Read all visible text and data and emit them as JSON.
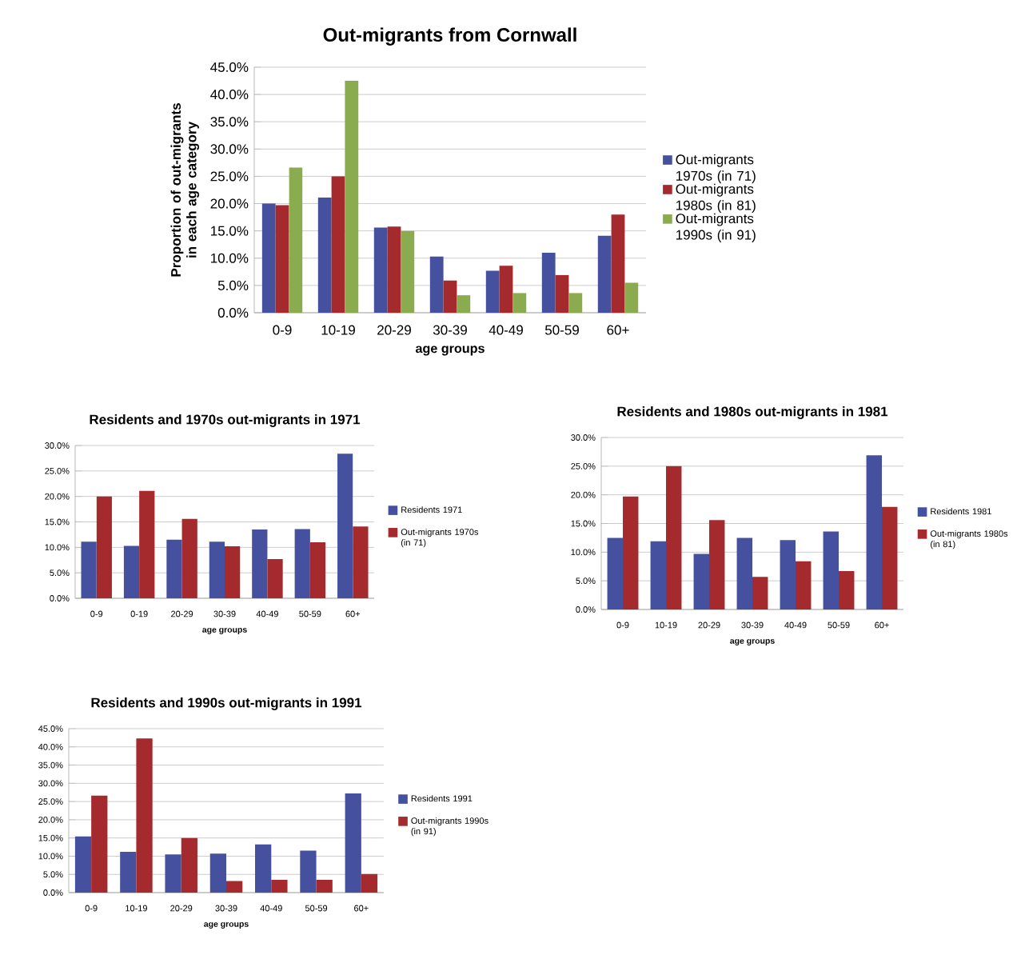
{
  "chart_data": [
    {
      "type": "bar",
      "title": "Out-migrants from Cornwall",
      "xlabel": "age groups",
      "ylabel": "Proportion of out-migrants in each age category",
      "categories": [
        "0-9",
        "10-19",
        "20-29",
        "30-39",
        "40-49",
        "50-59",
        "60+"
      ],
      "series": [
        {
          "name": "Out-migrants 1970s (in 71)",
          "color": "#45509e",
          "values": [
            20.0,
            21.1,
            15.6,
            10.3,
            7.7,
            11.0,
            14.1
          ]
        },
        {
          "name": "Out-migrants 1980s (in 81)",
          "color": "#a52a2e",
          "values": [
            19.7,
            25.0,
            15.8,
            5.9,
            8.6,
            6.9,
            18.0
          ]
        },
        {
          "name": "Out-migrants 1990s (in 91)",
          "color": "#8aac4f",
          "values": [
            26.6,
            42.5,
            15.0,
            3.2,
            3.6,
            3.6,
            5.5
          ]
        }
      ],
      "ylim": [
        0,
        45
      ],
      "yticks": [
        {
          "value": 0,
          "label": "0.0%"
        },
        {
          "value": 5,
          "label": "5.0%"
        },
        {
          "value": 10,
          "label": "10.0%"
        },
        {
          "value": 15,
          "label": "15.0%"
        },
        {
          "value": 20,
          "label": "20.0%"
        },
        {
          "value": 25,
          "label": "25.0%"
        },
        {
          "value": 30,
          "label": "30.0%"
        },
        {
          "value": 35,
          "label": "35.0%"
        },
        {
          "value": 40,
          "label": "40.0%"
        },
        {
          "value": 45,
          "label": "45.0%"
        }
      ],
      "grid": "y",
      "legend": "right"
    },
    {
      "type": "bar",
      "title": "Residents and 1970s out-migrants in 1971",
      "xlabel": "age groups",
      "categories": [
        "0-9",
        "0-19",
        "20-29",
        "30-39",
        "40-49",
        "50-59",
        "60+"
      ],
      "series": [
        {
          "name": "Residents 1971",
          "color": "#45509e",
          "values": [
            11.1,
            10.3,
            11.5,
            11.1,
            13.5,
            13.6,
            28.4
          ]
        },
        {
          "name": "Out-migrants 1970s (in 71)",
          "color": "#a52a2e",
          "values": [
            20.0,
            21.1,
            15.6,
            10.2,
            7.7,
            11.0,
            14.1
          ]
        }
      ],
      "ylim": [
        0,
        30
      ],
      "yticks": [
        {
          "value": 0,
          "label": "0.0%"
        },
        {
          "value": 5,
          "label": "5.0%"
        },
        {
          "value": 10,
          "label": "10.0%"
        },
        {
          "value": 15,
          "label": "15.0%"
        },
        {
          "value": 20,
          "label": "20.0%"
        },
        {
          "value": 25,
          "label": "25.0%"
        },
        {
          "value": 30,
          "label": "30.0%"
        }
      ],
      "grid": "y",
      "legend": "right"
    },
    {
      "type": "bar",
      "title": "Residents and 1980s out-migrants in 1981",
      "xlabel": "age groups",
      "categories": [
        "0-9",
        "10-19",
        "20-29",
        "30-39",
        "40-49",
        "50-59",
        "60+"
      ],
      "series": [
        {
          "name": "Residents 1981",
          "color": "#45509e",
          "values": [
            12.5,
            11.9,
            9.7,
            12.5,
            12.1,
            13.6,
            26.9
          ]
        },
        {
          "name": "Out-migrants 1980s (in 81)",
          "color": "#a52a2e",
          "values": [
            19.7,
            25.0,
            15.6,
            5.7,
            8.4,
            6.7,
            17.9
          ]
        }
      ],
      "ylim": [
        0,
        30
      ],
      "yticks": [
        {
          "value": 0,
          "label": "0.0%"
        },
        {
          "value": 5,
          "label": "5.0%"
        },
        {
          "value": 10,
          "label": "10.0%"
        },
        {
          "value": 15,
          "label": "15.0%"
        },
        {
          "value": 20,
          "label": "20.0%"
        },
        {
          "value": 25,
          "label": "25.0%"
        },
        {
          "value": 30,
          "label": "30.0%"
        }
      ],
      "grid": "y",
      "legend": "right"
    },
    {
      "type": "bar",
      "title": "Residents and 1990s out-migrants in 1991",
      "xlabel": "age groups",
      "categories": [
        "0-9",
        "10-19",
        "20-29",
        "30-39",
        "40-49",
        "50-59",
        "60+"
      ],
      "series": [
        {
          "name": "Residents 1991",
          "color": "#45509e",
          "values": [
            15.4,
            11.2,
            10.5,
            10.7,
            13.2,
            11.5,
            27.2
          ]
        },
        {
          "name": "Out-migrants 1990s (in 91)",
          "color": "#a52a2e",
          "values": [
            26.6,
            42.3,
            15.0,
            3.2,
            3.5,
            3.5,
            5.1
          ]
        }
      ],
      "ylim": [
        0,
        45
      ],
      "yticks": [
        {
          "value": 0,
          "label": "0.0%"
        },
        {
          "value": 5,
          "label": "5.0%"
        },
        {
          "value": 10,
          "label": "10.0%"
        },
        {
          "value": 15,
          "label": "15.0%"
        },
        {
          "value": 20,
          "label": "20.0%"
        },
        {
          "value": 25,
          "label": "25.0%"
        },
        {
          "value": 30,
          "label": "30.0%"
        },
        {
          "value": 35,
          "label": "35.0%"
        },
        {
          "value": 40,
          "label": "40.0%"
        },
        {
          "value": 45,
          "label": "45.0%"
        }
      ],
      "grid": "y",
      "legend": "right"
    }
  ]
}
